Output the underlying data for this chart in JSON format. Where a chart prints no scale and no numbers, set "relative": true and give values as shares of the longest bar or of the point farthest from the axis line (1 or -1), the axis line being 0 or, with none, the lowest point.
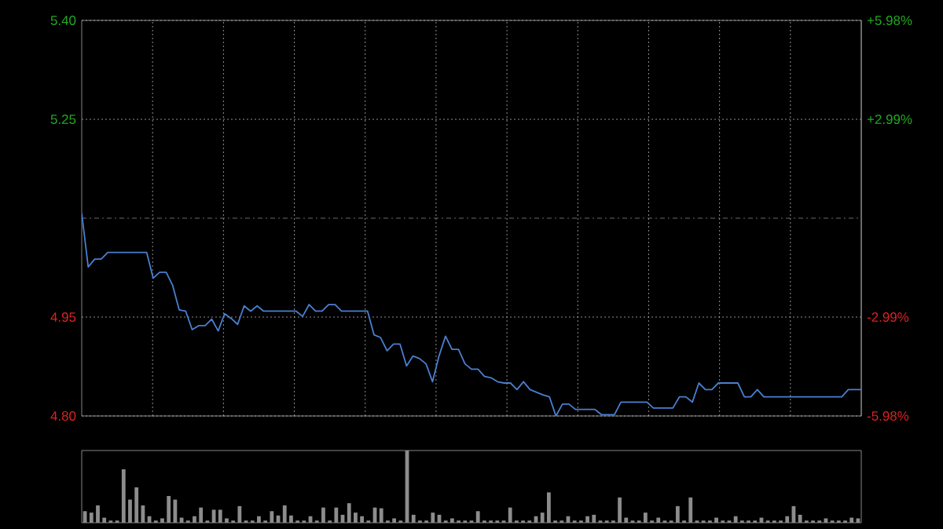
{
  "chart_data": [
    {
      "type": "line",
      "color": "#4a7fd0",
      "tick_labels": "y",
      "grid": true,
      "categories": [
        null,
        null,
        null,
        null,
        null,
        null,
        null,
        null,
        null,
        null,
        null,
        null,
        null,
        null,
        null,
        null,
        null,
        null,
        null,
        null,
        null,
        null,
        null,
        null,
        null,
        null,
        null,
        null,
        null,
        null,
        null,
        null,
        null,
        null,
        null,
        null,
        null,
        null,
        null,
        null,
        null,
        null,
        null,
        null,
        null,
        null,
        null,
        null,
        null,
        null,
        null,
        null,
        null,
        null,
        null,
        null,
        null,
        null,
        null,
        null,
        null,
        null,
        null,
        null,
        null,
        null,
        null,
        null,
        null,
        null,
        null,
        null,
        null,
        null,
        null,
        null,
        null,
        null,
        null,
        null,
        null,
        null,
        null,
        null,
        null,
        null,
        null,
        null,
        null,
        null,
        null,
        null,
        null,
        null,
        null,
        null,
        null,
        null,
        null,
        null,
        null,
        null,
        null,
        null,
        null,
        null,
        null,
        null,
        null,
        null,
        null,
        null,
        null,
        null,
        null,
        null,
        null,
        null,
        null,
        null,
        null
      ],
      "ylim": [
        4.8,
        5.4
      ],
      "yticks": [
        {
          "value": 5.4,
          "label": "5.40"
        },
        {
          "value": 5.25,
          "label": "5.25"
        },
        {
          "value": 4.95,
          "label": "4.95"
        },
        {
          "value": 4.8,
          "label": "4.80"
        }
      ],
      "y2lim": [
        -5.98,
        5.98
      ],
      "y2ticks": [
        {
          "value": 5.98,
          "label": "+5.98%"
        },
        {
          "value": 2.99,
          "label": "+2.99%"
        },
        {
          "value": -2.99,
          "label": "-2.99%"
        },
        {
          "value": -5.98,
          "label": "-5.98%"
        }
      ],
      "ref_lines": [
        {
          "axis": "y",
          "value": 5.1,
          "line_style": "dashed",
          "color": "#888888"
        }
      ],
      "values": [
        5.107,
        5.026,
        5.038,
        5.038,
        5.048,
        5.048,
        5.048,
        5.048,
        5.048,
        5.048,
        5.048,
        5.009,
        5.018,
        5.018,
        4.998,
        4.961,
        4.959,
        4.931,
        4.937,
        4.937,
        4.947,
        4.929,
        4.955,
        4.948,
        4.939,
        4.967,
        4.959,
        4.967,
        4.959,
        4.959,
        4.959,
        4.959,
        4.959,
        4.959,
        4.951,
        4.969,
        4.959,
        4.959,
        4.969,
        4.969,
        4.959,
        4.959,
        4.959,
        4.959,
        4.959,
        4.923,
        4.919,
        4.899,
        4.909,
        4.909,
        4.876,
        4.891,
        4.887,
        4.879,
        4.852,
        4.891,
        4.921,
        4.901,
        4.901,
        4.879,
        4.871,
        4.871,
        4.86,
        4.858,
        4.852,
        4.85,
        4.85,
        4.84,
        4.852,
        4.84,
        4.836,
        4.832,
        4.829,
        4.8,
        4.818,
        4.818,
        4.81,
        4.81,
        4.81,
        4.81,
        4.802,
        4.802,
        4.802,
        4.821,
        4.821,
        4.821,
        4.821,
        4.821,
        4.812,
        4.812,
        4.812,
        4.812,
        4.829,
        4.829,
        4.821,
        4.85,
        4.84,
        4.84,
        4.85,
        4.85,
        4.85,
        4.85,
        4.829,
        4.829,
        4.84,
        4.829,
        4.829,
        4.829,
        4.829,
        4.829,
        4.829,
        4.829,
        4.829,
        4.829,
        4.829,
        4.829,
        4.829,
        4.829,
        4.84,
        4.84,
        4.84
      ]
    },
    {
      "type": "bar",
      "relative": true,
      "color": "#8c8c8c",
      "tick_labels": false,
      "categories": [
        null,
        null,
        null,
        null,
        null,
        null,
        null,
        null,
        null,
        null,
        null,
        null,
        null,
        null,
        null,
        null,
        null,
        null,
        null,
        null,
        null,
        null,
        null,
        null,
        null,
        null,
        null,
        null,
        null,
        null,
        null,
        null,
        null,
        null,
        null,
        null,
        null,
        null,
        null,
        null,
        null,
        null,
        null,
        null,
        null,
        null,
        null,
        null,
        null,
        null,
        null,
        null,
        null,
        null,
        null,
        null,
        null,
        null,
        null,
        null,
        null,
        null,
        null,
        null,
        null,
        null,
        null,
        null,
        null,
        null,
        null,
        null,
        null,
        null,
        null,
        null,
        null,
        null,
        null,
        null,
        null,
        null,
        null,
        null,
        null,
        null,
        null,
        null,
        null,
        null,
        null,
        null,
        null,
        null,
        null,
        null,
        null,
        null,
        null,
        null,
        null,
        null,
        null,
        null,
        null,
        null,
        null,
        null,
        null,
        null,
        null,
        null,
        null,
        null,
        null,
        null,
        null,
        null,
        null,
        null,
        null
      ],
      "values": [
        0.16,
        0.14,
        0.24,
        0.07,
        0.03,
        0.03,
        0.74,
        0.32,
        0.49,
        0.24,
        0.09,
        0.03,
        0.06,
        0.37,
        0.32,
        0.07,
        0.03,
        0.09,
        0.21,
        0.03,
        0.18,
        0.18,
        0.06,
        0.03,
        0.23,
        0.03,
        0.03,
        0.09,
        0.03,
        0.16,
        0.1,
        0.24,
        0.1,
        0.03,
        0.03,
        0.09,
        0.03,
        0.21,
        0.03,
        0.21,
        0.11,
        0.27,
        0.14,
        0.09,
        0.03,
        0.21,
        0.2,
        0.03,
        0.06,
        0.03,
        1,
        0.11,
        0.03,
        0.03,
        0.14,
        0.11,
        0.03,
        0.06,
        0.03,
        0.03,
        0.03,
        0.16,
        0.03,
        0.03,
        0.03,
        0.03,
        0.21,
        0.03,
        0.03,
        0.03,
        0.09,
        0.14,
        0.42,
        0.03,
        0.03,
        0.09,
        0.03,
        0.03,
        0.09,
        0.11,
        0.03,
        0.03,
        0.03,
        0.35,
        0.07,
        0.03,
        0.03,
        0.14,
        0.03,
        0.07,
        0.03,
        0.03,
        0.23,
        0.03,
        0.35,
        0.03,
        0.03,
        0.03,
        0.07,
        0.03,
        0.03,
        0.09,
        0.03,
        0.03,
        0.03,
        0.07,
        0.03,
        0.03,
        0.03,
        0.09,
        0.23,
        0.11,
        0.03,
        0.03,
        0.03,
        0.06,
        0.03,
        0.03,
        0.03,
        0.07,
        0.06
      ]
    }
  ]
}
